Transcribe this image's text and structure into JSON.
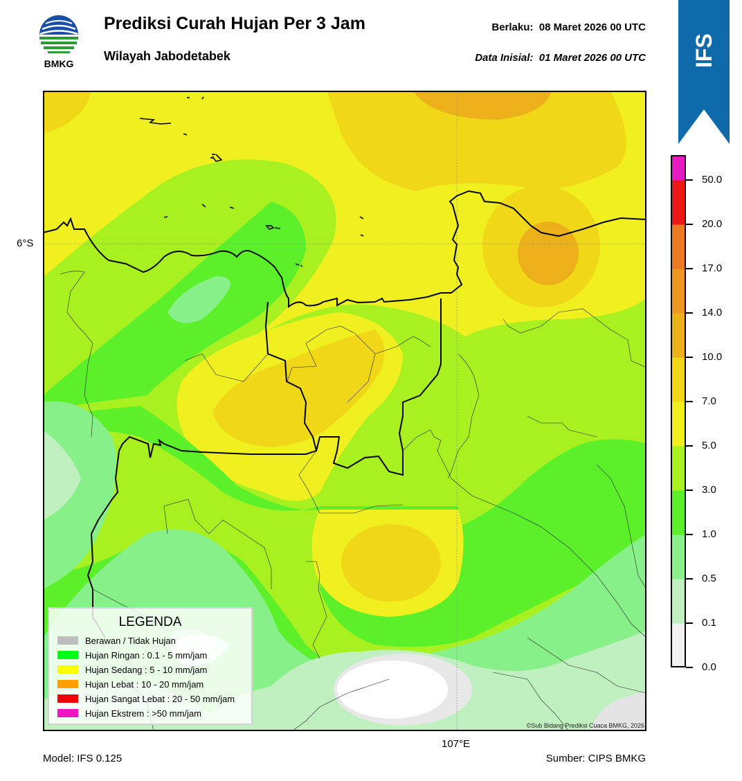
{
  "header": {
    "title": "Prediksi Curah Hujan Per 3 Jam",
    "subtitle": "Wilayah Jabodetabek",
    "valid_label": "Berlaku:",
    "valid_value": "08 Maret 2026 00 UTC",
    "initial_label": "Data Inisial:",
    "initial_value": "01 Maret 2026 00 UTC"
  },
  "logo": {
    "text": "BMKG",
    "icon": "bmkg-globe-logo"
  },
  "ribbon": {
    "text": "IFS",
    "color": "#0e6aa8"
  },
  "map": {
    "lat_label": "6°S",
    "lon_label": "107°E",
    "copyright": "©Sub Bidang Prediksi Cuaca BMKG, 2026"
  },
  "legend": {
    "title": "LEGENDA",
    "items": [
      {
        "label": "Berawan / Tidak Hujan",
        "color": "#bdbdbd"
      },
      {
        "label": "Hujan Ringan : 0.1 - 5 mm/jam",
        "color": "#00ff17"
      },
      {
        "label": "Hujan Sedang : 5 - 10 mm/jam",
        "color": "#ffff00"
      },
      {
        "label": "Hujan Lebat : 10 - 20 mm/jam",
        "color": "#ffa000"
      },
      {
        "label": "Hujan Sangat Lebat : 20 - 50 mm/jam",
        "color": "#ee0000"
      },
      {
        "label": "Hujan Ekstrem : >50 mm/jam",
        "color": "#ee16c2"
      }
    ]
  },
  "colorbar": {
    "tick_labels": [
      "0.0",
      "0.1",
      "0.5",
      "1.0",
      "3.0",
      "5.0",
      "7.0",
      "10.0",
      "14.0",
      "17.0",
      "20.0",
      "50.0"
    ],
    "colors": [
      "#f0f0f0",
      "#c0f0c0",
      "#88f088",
      "#5cf02a",
      "#a8f020",
      "#f0f020",
      "#f0d818",
      "#ecb01a",
      "#ec9822",
      "#ec7a22",
      "#ec1818",
      "#e31cc2"
    ]
  },
  "footer": {
    "model": "Model: IFS 0.125",
    "source": "Sumber: CIPS BMKG"
  }
}
